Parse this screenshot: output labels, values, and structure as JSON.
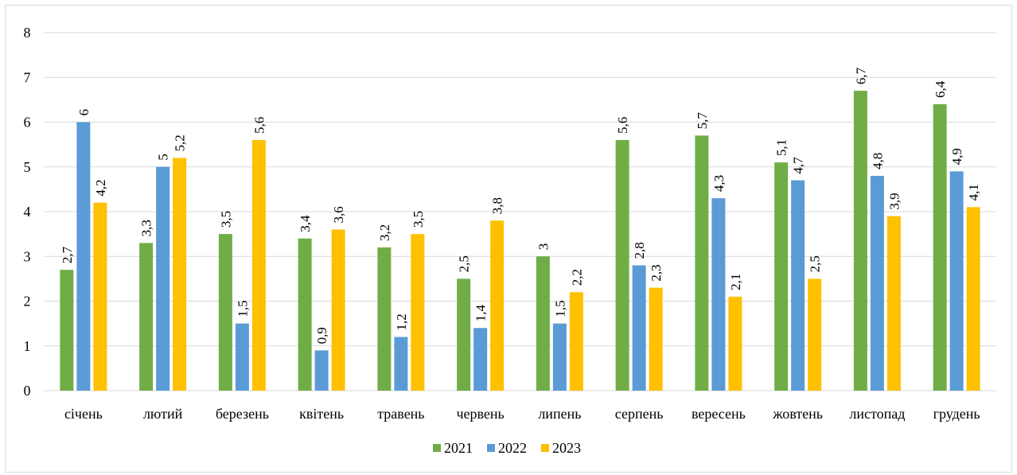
{
  "chart_data": {
    "type": "bar",
    "title": "",
    "xlabel": "",
    "ylabel": "",
    "categories": [
      "січень",
      "лютий",
      "березень",
      "квітень",
      "травень",
      "червень",
      "липень",
      "серпень",
      "вересень",
      "жовтень",
      "листопад",
      "грудень"
    ],
    "series": [
      {
        "name": "2021",
        "color": "#70ad47",
        "values": [
          2.7,
          3.3,
          3.5,
          3.4,
          3.2,
          2.5,
          3,
          5.6,
          5.7,
          5.1,
          6.7,
          6.4
        ],
        "labels": [
          "2,7",
          "3,3",
          "3,5",
          "3,4",
          "3,2",
          "2,5",
          "3",
          "5,6",
          "5,7",
          "5,1",
          "6,7",
          "6,4"
        ]
      },
      {
        "name": "2022",
        "color": "#5b9bd5",
        "values": [
          6,
          5,
          1.5,
          0.9,
          1.2,
          1.4,
          1.5,
          2.8,
          4.3,
          4.7,
          4.8,
          4.9
        ],
        "labels": [
          "6",
          "5",
          "1,5",
          "0,9",
          "1,2",
          "1,4",
          "1,5",
          "2,8",
          "4,3",
          "4,7",
          "4,8",
          "4,9"
        ]
      },
      {
        "name": "2023",
        "color": "#ffc000",
        "values": [
          4.2,
          5.2,
          5.6,
          3.6,
          3.5,
          3.8,
          2.2,
          2.3,
          2.1,
          2.5,
          3.9,
          4.1
        ],
        "labels": [
          "4,2",
          "5,2",
          "5,6",
          "3,6",
          "3,5",
          "3,8",
          "2,2",
          "2,3",
          "2,1",
          "2,5",
          "3,9",
          "4,1"
        ]
      }
    ],
    "ylim": [
      0,
      8
    ],
    "yticks": [
      "0",
      "1",
      "2",
      "3",
      "4",
      "5",
      "6",
      "7",
      "8"
    ],
    "grid": true,
    "gridColor": "#d9d9d9",
    "legend_position": "bottom",
    "data_label_rotation": "vertical"
  }
}
